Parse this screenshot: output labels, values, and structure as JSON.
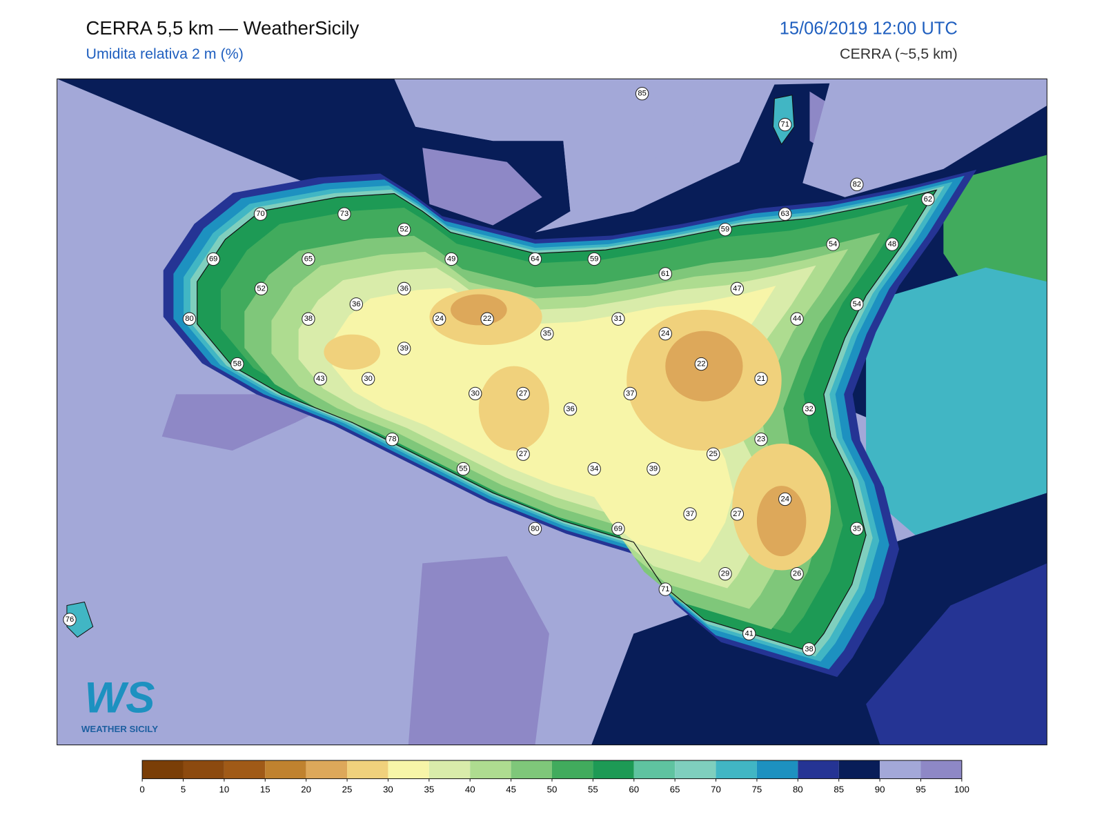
{
  "header": {
    "title": "CERRA 5,5 km — WeatherSicily",
    "subtitle": "Umidita relativa 2 m (%)",
    "datetime": "15/06/2019 12:00 UTC",
    "model": "CERRA (~5,5 km)"
  },
  "stations": [
    85,
    71,
    82,
    62,
    70,
    73,
    52,
    63,
    59,
    54,
    48,
    69,
    65,
    49,
    64,
    59,
    61,
    52,
    36,
    36,
    47,
    54,
    80,
    38,
    24,
    22,
    35,
    31,
    24,
    44,
    39,
    58,
    43,
    30,
    22,
    21,
    30,
    27,
    37,
    36,
    32,
    78,
    23,
    27,
    25,
    55,
    34,
    39,
    24,
    37,
    27,
    35,
    80,
    69,
    29,
    26,
    71,
    41,
    38,
    76
  ],
  "colorbar": {
    "ticks": [
      0,
      5,
      10,
      15,
      20,
      25,
      30,
      35,
      40,
      45,
      50,
      55,
      60,
      65,
      70,
      75,
      80,
      85,
      90,
      95,
      100
    ],
    "colors": [
      "#7a3e07",
      "#8c4a0f",
      "#a05a17",
      "#c0822f",
      "#dda85a",
      "#f0d17c",
      "#f7f5a8",
      "#d9ecaa",
      "#aedc90",
      "#7fc77a",
      "#41ab5d",
      "#1d9a55",
      "#5fc3a0",
      "#7fcfbe",
      "#41b6c4",
      "#1d91c0",
      "#253494",
      "#081d58",
      "#a3a8d8",
      "#8e88c6"
    ]
  },
  "logo": {
    "mark": "WS",
    "text": "WEATHER SICILY"
  }
}
